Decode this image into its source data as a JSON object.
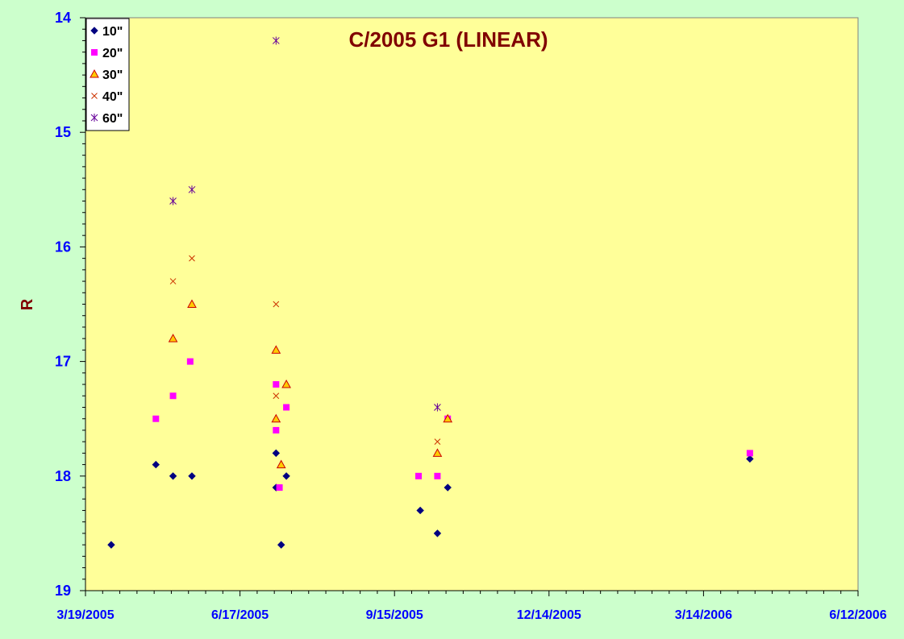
{
  "chart_data": {
    "type": "scatter",
    "title": "C/2005 G1 (LINEAR)",
    "xlabel": "",
    "ylabel": "R",
    "ylim": [
      19,
      14
    ],
    "y_inverted": true,
    "y_ticks": [
      "14",
      "15",
      "16",
      "17",
      "18",
      "19"
    ],
    "x_axis_type": "date",
    "xlim": [
      "2005-03-19",
      "2006-06-12"
    ],
    "x_tick_labels": [
      "3/19/2005",
      "6/17/2005",
      "9/15/2005",
      "12/14/2005",
      "3/14/2006",
      "6/12/2006"
    ],
    "grid": false,
    "legend_position": "top-left",
    "plot_background": "#ffff99",
    "page_background": "#ccffcc",
    "title_color": "#800000",
    "tick_label_color": "#0000ff",
    "series": [
      {
        "name": "10\"",
        "marker": "diamond",
        "color": "#000080",
        "points": [
          {
            "x": "2005-04-03",
            "y": 18.6
          },
          {
            "x": "2005-04-29",
            "y": 17.9
          },
          {
            "x": "2005-05-09",
            "y": 18.0
          },
          {
            "x": "2005-05-20",
            "y": 18.0
          },
          {
            "x": "2005-07-08",
            "y": 17.8
          },
          {
            "x": "2005-07-08",
            "y": 18.1
          },
          {
            "x": "2005-07-11",
            "y": 18.6
          },
          {
            "x": "2005-07-14",
            "y": 18.0
          },
          {
            "x": "2005-09-30",
            "y": 18.3
          },
          {
            "x": "2005-10-10",
            "y": 18.5
          },
          {
            "x": "2005-10-16",
            "y": 18.1
          },
          {
            "x": "2006-04-10",
            "y": 17.85
          }
        ]
      },
      {
        "name": "20\"",
        "marker": "square",
        "color": "#ff00ff",
        "points": [
          {
            "x": "2005-04-29",
            "y": 17.5
          },
          {
            "x": "2005-05-09",
            "y": 17.3
          },
          {
            "x": "2005-05-19",
            "y": 17.0
          },
          {
            "x": "2005-07-08",
            "y": 17.2
          },
          {
            "x": "2005-07-08",
            "y": 17.6
          },
          {
            "x": "2005-07-10",
            "y": 18.1
          },
          {
            "x": "2005-07-14",
            "y": 17.4
          },
          {
            "x": "2005-09-29",
            "y": 18.0
          },
          {
            "x": "2005-10-10",
            "y": 18.0
          },
          {
            "x": "2005-10-16",
            "y": 17.5
          },
          {
            "x": "2006-04-10",
            "y": 17.8
          }
        ]
      },
      {
        "name": "30\"",
        "marker": "triangle",
        "color": "#ffcc00",
        "points": [
          {
            "x": "2005-05-09",
            "y": 16.8
          },
          {
            "x": "2005-05-20",
            "y": 16.5
          },
          {
            "x": "2005-07-08",
            "y": 16.9
          },
          {
            "x": "2005-07-08",
            "y": 17.5
          },
          {
            "x": "2005-07-11",
            "y": 17.9
          },
          {
            "x": "2005-07-14",
            "y": 17.2
          },
          {
            "x": "2005-10-10",
            "y": 17.8
          },
          {
            "x": "2005-10-16",
            "y": 17.5
          }
        ]
      },
      {
        "name": "40\"",
        "marker": "x",
        "color": "#cc3300",
        "points": [
          {
            "x": "2005-05-09",
            "y": 16.3
          },
          {
            "x": "2005-05-20",
            "y": 16.1
          },
          {
            "x": "2005-07-08",
            "y": 16.5
          },
          {
            "x": "2005-07-08",
            "y": 17.3
          },
          {
            "x": "2005-10-10",
            "y": 17.7
          }
        ]
      },
      {
        "name": "60\"",
        "marker": "star",
        "color": "#660099",
        "points": [
          {
            "x": "2005-05-09",
            "y": 15.6
          },
          {
            "x": "2005-05-20",
            "y": 15.5
          },
          {
            "x": "2005-07-08",
            "y": 14.2
          },
          {
            "x": "2005-10-10",
            "y": 17.4
          }
        ]
      }
    ]
  }
}
